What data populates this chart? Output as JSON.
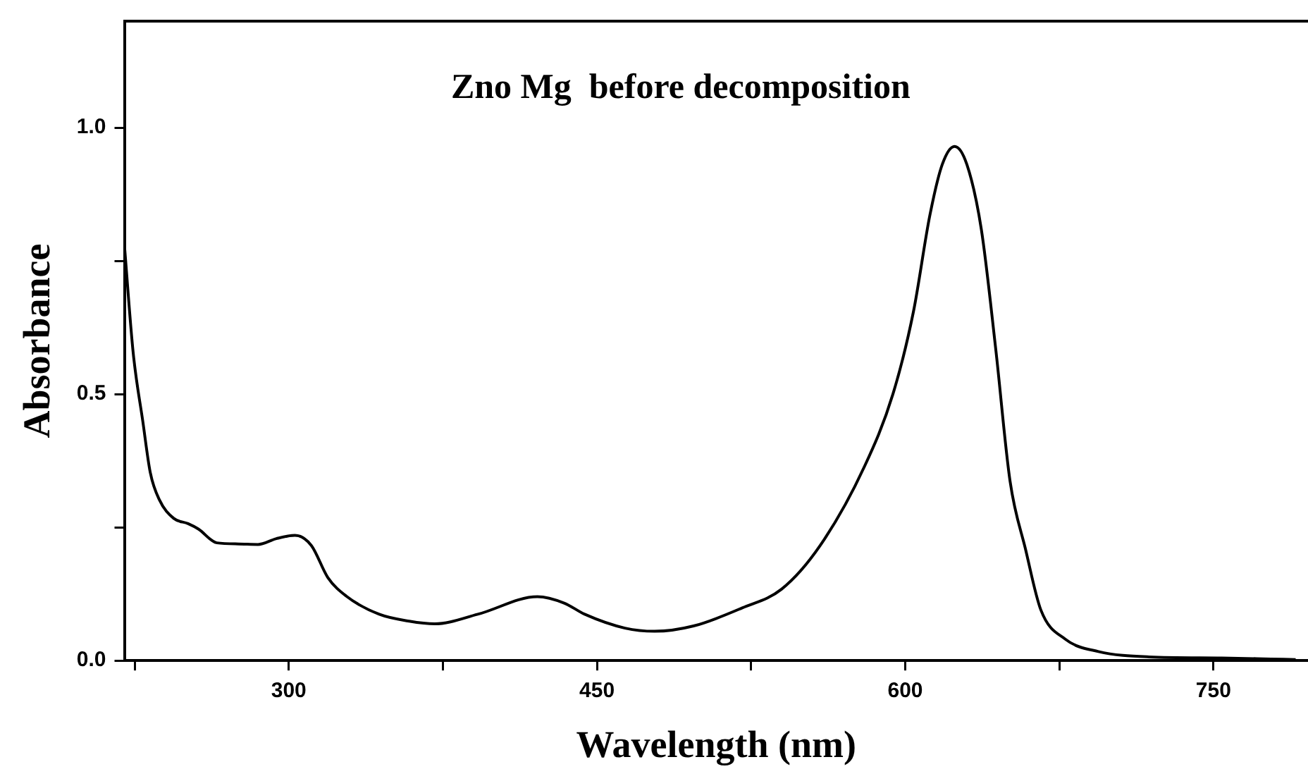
{
  "chart_data": {
    "type": "line",
    "title": "Zno Mg  before decomposition",
    "xlabel": "Wavelength (nm)",
    "ylabel": "Absorbance",
    "xlim": [
      220,
      796
    ],
    "xticks": [
      {
        "value": 225,
        "label": null
      },
      300,
      {
        "value": 375,
        "label": null
      },
      450,
      {
        "value": 525,
        "label": null
      },
      600,
      {
        "value": 675,
        "label": null
      },
      750
    ],
    "ylim": [
      0,
      1.2
    ],
    "yticks": [
      {
        "value": 0,
        "label": "0.0"
      },
      {
        "value": 0.25,
        "label": null
      },
      0.5,
      {
        "value": 0.75,
        "label": null
      },
      {
        "value": 1,
        "label": "1.0"
      }
    ],
    "legend": false,
    "marker": "none",
    "line_style": "solid",
    "series": [
      {
        "color": "#000000",
        "x": [
          220,
          224.3,
          229,
          232.6,
          237,
          244,
          251,
          256,
          265,
          275.5,
          285,
          294,
          303,
          311,
          319,
          328,
          344,
          358.6,
          371,
          392,
          421,
          434,
          444,
          463.6,
          478,
          497,
          520.7,
          539.8,
          558.6,
          580,
          594,
          604,
          612,
          618,
          624,
          630,
          637,
          644,
          651,
          658.6,
          666,
          678,
          694,
          718.6,
          754,
          778,
          790
        ],
        "values": [
          0.78,
          0.577,
          0.448,
          0.353,
          0.302,
          0.267,
          0.257,
          0.247,
          0.221,
          0.219,
          0.218,
          0.229,
          0.235,
          0.216,
          0.156,
          0.121,
          0.087,
          0.074,
          0.069,
          0.087,
          0.12,
          0.108,
          0.087,
          0.061,
          0.055,
          0.065,
          0.099,
          0.134,
          0.216,
          0.363,
          0.5,
          0.655,
          0.836,
          0.931,
          0.965,
          0.931,
          0.81,
          0.586,
          0.337,
          0.208,
          0.095,
          0.04,
          0.017,
          0.007,
          0.005,
          0.003,
          0.002
        ]
      }
    ]
  }
}
